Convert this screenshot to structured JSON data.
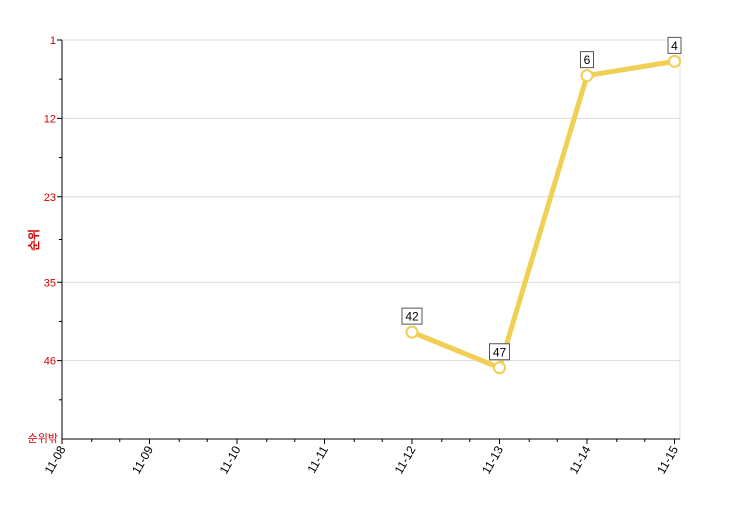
{
  "chart_data": {
    "type": "line",
    "ylabel": "순위",
    "y_reversed": true,
    "ylim": [
      1,
      57
    ],
    "y_ticks": [
      1,
      12,
      23,
      35,
      46
    ],
    "y_bottom_label": "순위밖",
    "categories": [
      "11-08",
      "11-09",
      "11-10",
      "11-11",
      "11-12",
      "11-13",
      "11-14",
      "11-15"
    ],
    "series": [
      {
        "values": [
          null,
          null,
          null,
          null,
          42,
          47,
          6,
          4
        ]
      }
    ],
    "grid": true,
    "colors": {
      "line": "#f0d054",
      "axis": "#000000",
      "tick_label": "#d40000",
      "grid": "#dcdcdc"
    }
  }
}
